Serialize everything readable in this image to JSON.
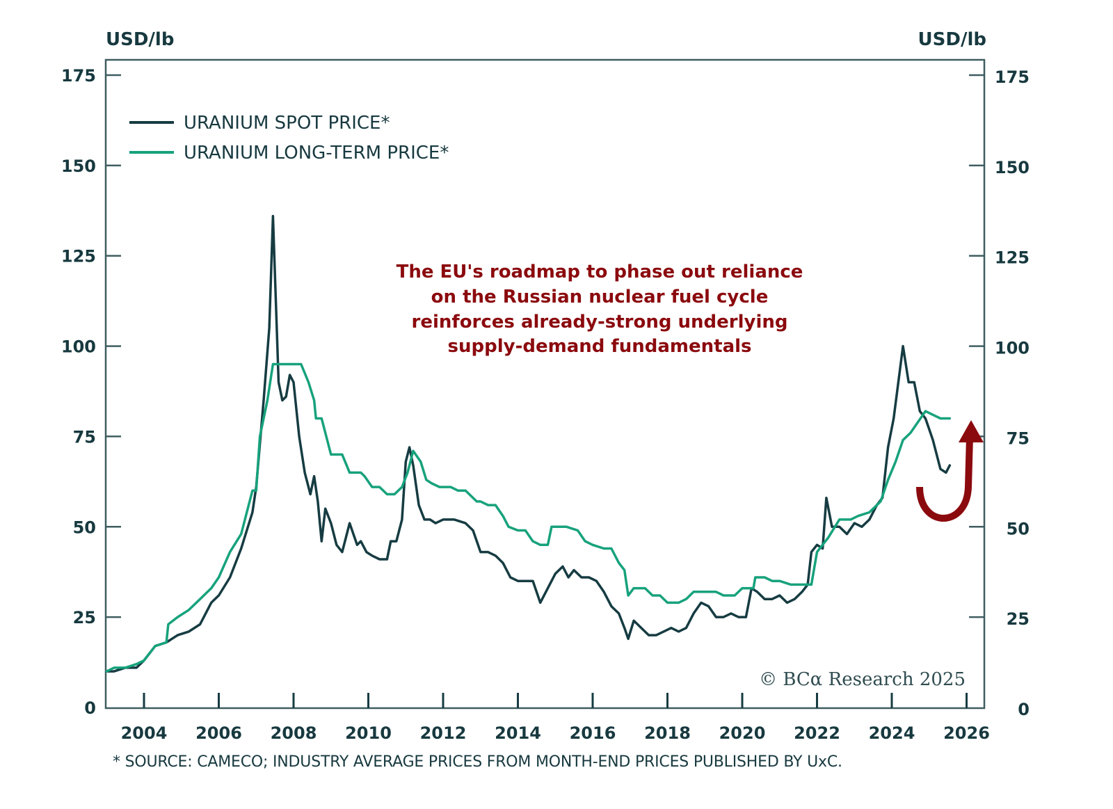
{
  "chart_data": {
    "type": "line",
    "title": "",
    "xlabel": "",
    "ylabel_left": "USD/lb",
    "ylabel_right": "USD/lb",
    "xlim": [
      2003.0,
      2026.5
    ],
    "ylim": [
      0,
      175
    ],
    "x_ticks": [
      2004,
      2006,
      2008,
      2010,
      2012,
      2014,
      2016,
      2018,
      2020,
      2022,
      2024,
      2026
    ],
    "y_ticks": [
      0,
      25,
      50,
      75,
      100,
      125,
      150,
      175
    ],
    "grid": false,
    "legend_position": "top-left",
    "series": [
      {
        "name": "URANIUM SPOT PRICE*",
        "color": "#163c42",
        "x": [
          2003.0,
          2003.2,
          2003.5,
          2003.8,
          2004.0,
          2004.3,
          2004.6,
          2004.9,
          2005.2,
          2005.5,
          2005.8,
          2006.0,
          2006.3,
          2006.6,
          2006.9,
          2007.0,
          2007.2,
          2007.35,
          2007.45,
          2007.6,
          2007.7,
          2007.8,
          2007.9,
          2008.0,
          2008.15,
          2008.3,
          2008.45,
          2008.55,
          2008.65,
          2008.75,
          2008.85,
          2009.0,
          2009.15,
          2009.3,
          2009.5,
          2009.7,
          2009.8,
          2009.95,
          2010.1,
          2010.3,
          2010.5,
          2010.6,
          2010.75,
          2010.9,
          2011.0,
          2011.1,
          2011.2,
          2011.35,
          2011.5,
          2011.65,
          2011.8,
          2012.0,
          2012.3,
          2012.6,
          2012.8,
          2013.0,
          2013.2,
          2013.4,
          2013.6,
          2013.8,
          2014.0,
          2014.2,
          2014.4,
          2014.6,
          2014.8,
          2015.0,
          2015.2,
          2015.35,
          2015.5,
          2015.7,
          2015.9,
          2016.1,
          2016.3,
          2016.5,
          2016.7,
          2016.85,
          2016.95,
          2017.1,
          2017.3,
          2017.5,
          2017.7,
          2017.9,
          2018.1,
          2018.3,
          2018.5,
          2018.7,
          2018.9,
          2019.1,
          2019.3,
          2019.5,
          2019.7,
          2019.9,
          2020.1,
          2020.25,
          2020.4,
          2020.6,
          2020.8,
          2021.0,
          2021.2,
          2021.4,
          2021.6,
          2021.75,
          2021.85,
          2022.0,
          2022.15,
          2022.25,
          2022.4,
          2022.6,
          2022.8,
          2023.0,
          2023.2,
          2023.4,
          2023.6,
          2023.75,
          2023.9,
          2024.05,
          2024.3,
          2024.45,
          2024.6,
          2024.75,
          2024.9,
          2025.1,
          2025.3,
          2025.45,
          2025.55
        ],
        "y": [
          10,
          10,
          11,
          11,
          13,
          17,
          18,
          20,
          21,
          23,
          29,
          31,
          36,
          44,
          54,
          61,
          85,
          105,
          136,
          90,
          85,
          86,
          92,
          90,
          75,
          65,
          59,
          64,
          57,
          46,
          55,
          51,
          45,
          43,
          51,
          45,
          46,
          43,
          42,
          41,
          41,
          46,
          46,
          52,
          68,
          72,
          67,
          56,
          52,
          52,
          51,
          52,
          52,
          51,
          49,
          43,
          43,
          42,
          40,
          36,
          35,
          35,
          35,
          29,
          33,
          37,
          39,
          36,
          38,
          36,
          36,
          35,
          32,
          28,
          26,
          22,
          19,
          24,
          22,
          20,
          20,
          21,
          22,
          21,
          22,
          26,
          29,
          28,
          25,
          25,
          26,
          25,
          25,
          33,
          32,
          30,
          30,
          31,
          29,
          30,
          32,
          34,
          43,
          45,
          44,
          58,
          50,
          50,
          48,
          51,
          50,
          52,
          56,
          58,
          72,
          80,
          100,
          90,
          90,
          82,
          80,
          74,
          66,
          65,
          67
        ]
      },
      {
        "name": "URANIUM LONG-TERM PRICE*",
        "color": "#17a27c",
        "x": [
          2003.0,
          2003.2,
          2003.5,
          2003.8,
          2004.0,
          2004.3,
          2004.6,
          2004.65,
          2004.9,
          2005.2,
          2005.5,
          2005.8,
          2006.0,
          2006.3,
          2006.6,
          2006.9,
          2007.0,
          2007.1,
          2007.3,
          2007.45,
          2007.7,
          2007.9,
          2008.2,
          2008.4,
          2008.55,
          2008.6,
          2008.75,
          2009.0,
          2009.3,
          2009.5,
          2009.8,
          2009.9,
          2010.1,
          2010.3,
          2010.5,
          2010.7,
          2010.9,
          2011.05,
          2011.2,
          2011.4,
          2011.55,
          2011.7,
          2011.9,
          2012.2,
          2012.4,
          2012.6,
          2012.9,
          2013.0,
          2013.2,
          2013.4,
          2013.6,
          2013.75,
          2014.0,
          2014.2,
          2014.4,
          2014.6,
          2014.8,
          2014.9,
          2015.3,
          2015.6,
          2015.8,
          2016.0,
          2016.3,
          2016.5,
          2016.7,
          2016.85,
          2016.95,
          2017.1,
          2017.4,
          2017.6,
          2017.8,
          2018.0,
          2018.3,
          2018.5,
          2018.7,
          2019.0,
          2019.3,
          2019.5,
          2019.8,
          2020.0,
          2020.3,
          2020.35,
          2020.6,
          2020.8,
          2021.0,
          2021.3,
          2021.6,
          2021.7,
          2021.85,
          2022.0,
          2022.3,
          2022.6,
          2022.9,
          2023.1,
          2023.4,
          2023.7,
          2023.9,
          2024.1,
          2024.3,
          2024.5,
          2024.7,
          2024.9,
          2025.1,
          2025.3,
          2025.55
        ],
        "y": [
          10,
          11,
          11,
          12,
          13,
          17,
          18,
          23,
          25,
          27,
          30,
          33,
          36,
          43,
          48,
          60,
          60,
          75,
          85,
          95,
          95,
          95,
          95,
          90,
          85,
          80,
          80,
          70,
          70,
          65,
          65,
          64,
          61,
          61,
          59,
          59,
          61,
          65,
          71,
          68,
          63,
          62,
          61,
          61,
          60,
          60,
          57,
          57,
          56,
          56,
          53,
          50,
          49,
          49,
          46,
          45,
          45,
          50,
          50,
          49,
          46,
          45,
          44,
          44,
          40,
          38,
          31,
          33,
          33,
          31,
          31,
          29,
          29,
          30,
          32,
          32,
          32,
          31,
          31,
          33,
          33,
          36,
          36,
          35,
          35,
          34,
          34,
          34,
          34,
          43,
          47,
          52,
          52,
          53,
          54,
          57,
          63,
          68,
          74,
          76,
          79,
          82,
          81,
          80,
          80
        ]
      }
    ],
    "annotation": {
      "lines": [
        "The EU's roadmap to phase out reliance",
        "on the Russian nuclear fuel cycle",
        "reinforces already-strong underlying",
        "supply-demand fundamentals"
      ],
      "color": "#8b0a0e"
    },
    "arrow": {
      "direction": "up-turn",
      "color": "#8b0a0e"
    },
    "credit": "© BCα Research 2025",
    "source_note": "* SOURCE: CAMECO; INDUSTRY AVERAGE PRICES FROM MONTH-END PRICES PUBLISHED BY UxC."
  }
}
